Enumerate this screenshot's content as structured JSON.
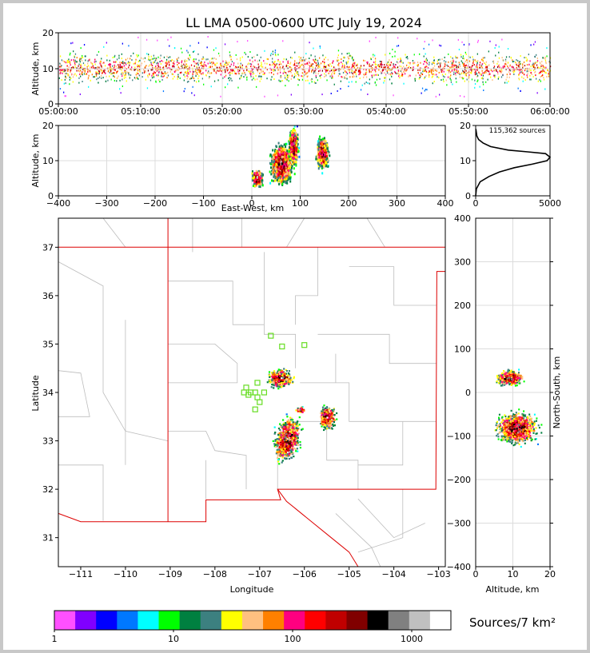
{
  "title": "LL LMA 0500-0600 UTC July 19, 2024",
  "chart_data": [
    {
      "panel": "altitude-time",
      "type": "scatter",
      "ylabel": "Altitude, km",
      "xlabel": "",
      "xlim": [
        "05:00:00",
        "06:00:00"
      ],
      "ylim": [
        0,
        20
      ],
      "xticks": [
        "05:00:00",
        "05:10:00",
        "05:20:00",
        "05:30:00",
        "05:40:00",
        "05:50:00",
        "06:00:00"
      ],
      "yticks": [
        "0",
        "10",
        "20"
      ],
      "grid": true
    },
    {
      "panel": "altitude-eastwest",
      "type": "heatmap",
      "xlabel": "East-West, km",
      "ylabel": "Altitude, km",
      "xlim": [
        -400,
        400
      ],
      "ylim": [
        0,
        20
      ],
      "xticks": [
        "−400",
        "−300",
        "−200",
        "−100",
        "0",
        "100",
        "200",
        "300",
        "400"
      ],
      "yticks": [
        "0",
        "10",
        "20"
      ],
      "grid": true
    },
    {
      "panel": "altitude-histogram",
      "type": "line",
      "annotation": "115,362 sources",
      "xlim": [
        0,
        5000
      ],
      "ylim": [
        0,
        20
      ],
      "xticks": [
        "0",
        "5000"
      ],
      "yticks": [
        "0",
        "10",
        "20"
      ],
      "x": [
        0,
        50,
        300,
        900,
        1600,
        2600,
        3800,
        4800,
        5000,
        4700,
        3500,
        2200,
        1000,
        500,
        350,
        200,
        80,
        10
      ],
      "y": [
        0,
        2,
        4,
        5.5,
        6.8,
        8,
        9,
        10,
        11,
        12,
        12.5,
        13,
        14,
        15,
        15.5,
        16,
        17,
        19
      ]
    },
    {
      "panel": "map",
      "type": "heatmap",
      "xlabel": "Longitude",
      "ylabel": "Latitude",
      "xlim": [
        -111.5,
        -102.85
      ],
      "ylim": [
        30.4,
        37.6
      ],
      "xticks": [
        "−111",
        "−110",
        "−109",
        "−108",
        "−107",
        "−106",
        "−105",
        "−104",
        "−103"
      ],
      "yticks": [
        "31",
        "32",
        "33",
        "34",
        "35",
        "36",
        "37"
      ],
      "stations": [
        [
          -106.75,
          35.17
        ],
        [
          -106.5,
          34.95
        ],
        [
          -106.0,
          34.98
        ],
        [
          -107.3,
          34.1
        ],
        [
          -107.35,
          34.0
        ],
        [
          -107.2,
          34.0
        ],
        [
          -107.1,
          34.0
        ],
        [
          -107.05,
          34.2
        ],
        [
          -107.05,
          33.9
        ],
        [
          -107.0,
          33.8
        ],
        [
          -107.1,
          33.65
        ],
        [
          -106.9,
          34.0
        ],
        [
          -107.25,
          33.95
        ]
      ]
    },
    {
      "panel": "northsouth-altitude",
      "type": "heatmap",
      "xlabel": "Altitude, km",
      "ylabel": "North-South, km",
      "xlim": [
        0,
        20
      ],
      "ylim": [
        -400,
        400
      ],
      "xticks": [
        "0",
        "10",
        "20"
      ],
      "yticks": [
        "−400",
        "−300",
        "−200",
        "−100",
        "0",
        "100",
        "200",
        "300",
        "400"
      ],
      "grid": true
    },
    {
      "panel": "colorbar",
      "type": "colorbar",
      "label": "Sources/7 km²",
      "ticks": [
        "1",
        "10",
        "100",
        "1000"
      ],
      "colors": [
        "#ff50ff",
        "#8000ff",
        "#0000ff",
        "#0078ff",
        "#00ffff",
        "#00ff00",
        "#008040",
        "#3c8080",
        "#ffff00",
        "#ffc080",
        "#ff8000",
        "#ff0080",
        "#ff0000",
        "#c00000",
        "#800000",
        "#000000",
        "#808080",
        "#c0c0c0",
        "#ffffff"
      ]
    }
  ]
}
